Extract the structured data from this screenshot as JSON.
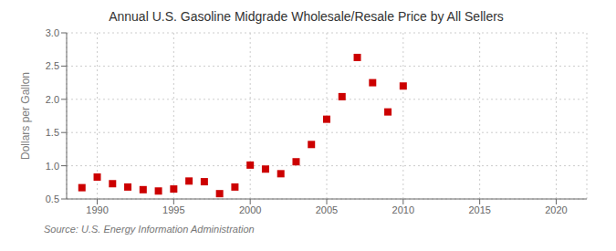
{
  "chart_data": {
    "type": "scatter",
    "title": "Annual U.S. Gasoline Midgrade Wholesale/Resale Price by All Sellers",
    "ylabel": "Dollars per Gallon",
    "annotation": "Source: U.S. Energy Information Administration",
    "x": [
      1989,
      1990,
      1991,
      1992,
      1993,
      1994,
      1995,
      1996,
      1997,
      1998,
      1999,
      2000,
      2001,
      2002,
      2003,
      2004,
      2005,
      2006,
      2007,
      2008,
      2009,
      2010
    ],
    "values": [
      0.67,
      0.83,
      0.73,
      0.68,
      0.64,
      0.62,
      0.65,
      0.77,
      0.76,
      0.58,
      0.68,
      1.01,
      0.95,
      0.88,
      1.06,
      1.32,
      1.7,
      2.04,
      2.63,
      2.25,
      1.81,
      2.2
    ],
    "color": "#cc0000",
    "marker": "square",
    "xlim": [
      1988,
      2022
    ],
    "ylim": [
      0.5,
      3.0
    ],
    "xticks": [
      1990,
      1995,
      2000,
      2005,
      2010,
      2015,
      2020
    ],
    "yticks": [
      0.5,
      {
        "value": 1.0,
        "label": "1.0"
      },
      1.5,
      {
        "value": 2.0,
        "label": "2.0"
      },
      2.5,
      {
        "value": 3.0,
        "label": "3.0"
      }
    ],
    "grid": true
  }
}
